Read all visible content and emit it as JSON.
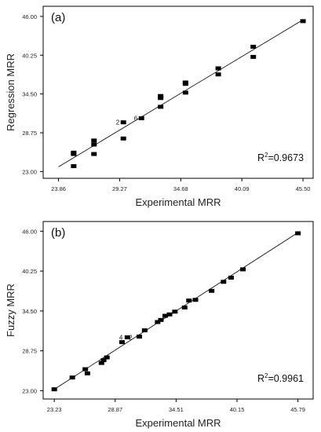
{
  "chart_data": [
    {
      "type": "scatter",
      "panel_label": "(a)",
      "xlabel": "Experimental MRR",
      "ylabel": "Regression MRR",
      "xlim": [
        22.5,
        46.4
      ],
      "ylim": [
        22.0,
        47.5
      ],
      "xticks": [
        "23.86",
        "29.27",
        "34.68",
        "40.09",
        "45.50"
      ],
      "yticks": [
        "23.00",
        "28.75",
        "34.50",
        "40.25",
        "46.00"
      ],
      "r2_prefix": "R",
      "r2_sup": "2",
      "r2_value": "=0.9673",
      "annotations": [
        {
          "text": "2",
          "x": 29.1,
          "y": 30.3
        },
        {
          "text": "6",
          "x": 30.7,
          "y": 30.9
        }
      ],
      "fit_line": {
        "x": [
          23.86,
          45.5
        ],
        "y": [
          23.7,
          45.5
        ]
      },
      "points": [
        {
          "x": 25.2,
          "y": 25.8
        },
        {
          "x": 25.2,
          "y": 25.6
        },
        {
          "x": 25.2,
          "y": 23.8
        },
        {
          "x": 27.0,
          "y": 27.6
        },
        {
          "x": 27.0,
          "y": 27.0
        },
        {
          "x": 27.0,
          "y": 25.6
        },
        {
          "x": 29.6,
          "y": 30.3
        },
        {
          "x": 29.6,
          "y": 27.9
        },
        {
          "x": 31.2,
          "y": 30.9
        },
        {
          "x": 32.9,
          "y": 34.2
        },
        {
          "x": 32.9,
          "y": 33.9
        },
        {
          "x": 32.9,
          "y": 32.6
        },
        {
          "x": 35.1,
          "y": 36.2
        },
        {
          "x": 35.1,
          "y": 36.0
        },
        {
          "x": 35.1,
          "y": 34.7
        },
        {
          "x": 38.0,
          "y": 38.3
        },
        {
          "x": 38.0,
          "y": 37.4
        },
        {
          "x": 41.1,
          "y": 41.5
        },
        {
          "x": 41.1,
          "y": 40.0
        },
        {
          "x": 45.5,
          "y": 45.3
        }
      ]
    },
    {
      "type": "scatter",
      "panel_label": "(b)",
      "xlabel": "Experimental MRR",
      "ylabel": "Fuzzy MRR",
      "xlim": [
        22.2,
        47.2
      ],
      "ylim": [
        21.8,
        47.4
      ],
      "xticks": [
        "23.23",
        "28.87",
        "34.51",
        "40.15",
        "45.79"
      ],
      "yticks": [
        "23.00",
        "28.75",
        "34.50",
        "40.25",
        "46.00"
      ],
      "r2_prefix": "R",
      "r2_sup": "2",
      "r2_value": "=0.9961",
      "annotations": [
        {
          "text": "4",
          "x": 29.4,
          "y": 30.7
        },
        {
          "text": "2",
          "x": 30.3,
          "y": 30.7
        }
      ],
      "fit_line": {
        "x": [
          23.23,
          45.79
        ],
        "y": [
          23.2,
          45.8
        ]
      },
      "points": [
        {
          "x": 23.23,
          "y": 23.2
        },
        {
          "x": 24.9,
          "y": 24.9
        },
        {
          "x": 26.1,
          "y": 26.1
        },
        {
          "x": 26.3,
          "y": 25.5
        },
        {
          "x": 27.6,
          "y": 27.0
        },
        {
          "x": 27.8,
          "y": 27.4
        },
        {
          "x": 28.1,
          "y": 27.8
        },
        {
          "x": 29.5,
          "y": 30.0
        },
        {
          "x": 30.0,
          "y": 30.7
        },
        {
          "x": 31.1,
          "y": 30.8
        },
        {
          "x": 31.6,
          "y": 31.7
        },
        {
          "x": 32.8,
          "y": 32.9
        },
        {
          "x": 33.1,
          "y": 33.2
        },
        {
          "x": 33.5,
          "y": 33.8
        },
        {
          "x": 33.9,
          "y": 34.0
        },
        {
          "x": 34.4,
          "y": 34.4
        },
        {
          "x": 35.3,
          "y": 35.0
        },
        {
          "x": 35.7,
          "y": 36.0
        },
        {
          "x": 36.3,
          "y": 36.1
        },
        {
          "x": 37.8,
          "y": 37.4
        },
        {
          "x": 38.9,
          "y": 38.7
        },
        {
          "x": 39.6,
          "y": 39.3
        },
        {
          "x": 40.7,
          "y": 40.5
        },
        {
          "x": 45.79,
          "y": 45.7
        }
      ]
    }
  ]
}
